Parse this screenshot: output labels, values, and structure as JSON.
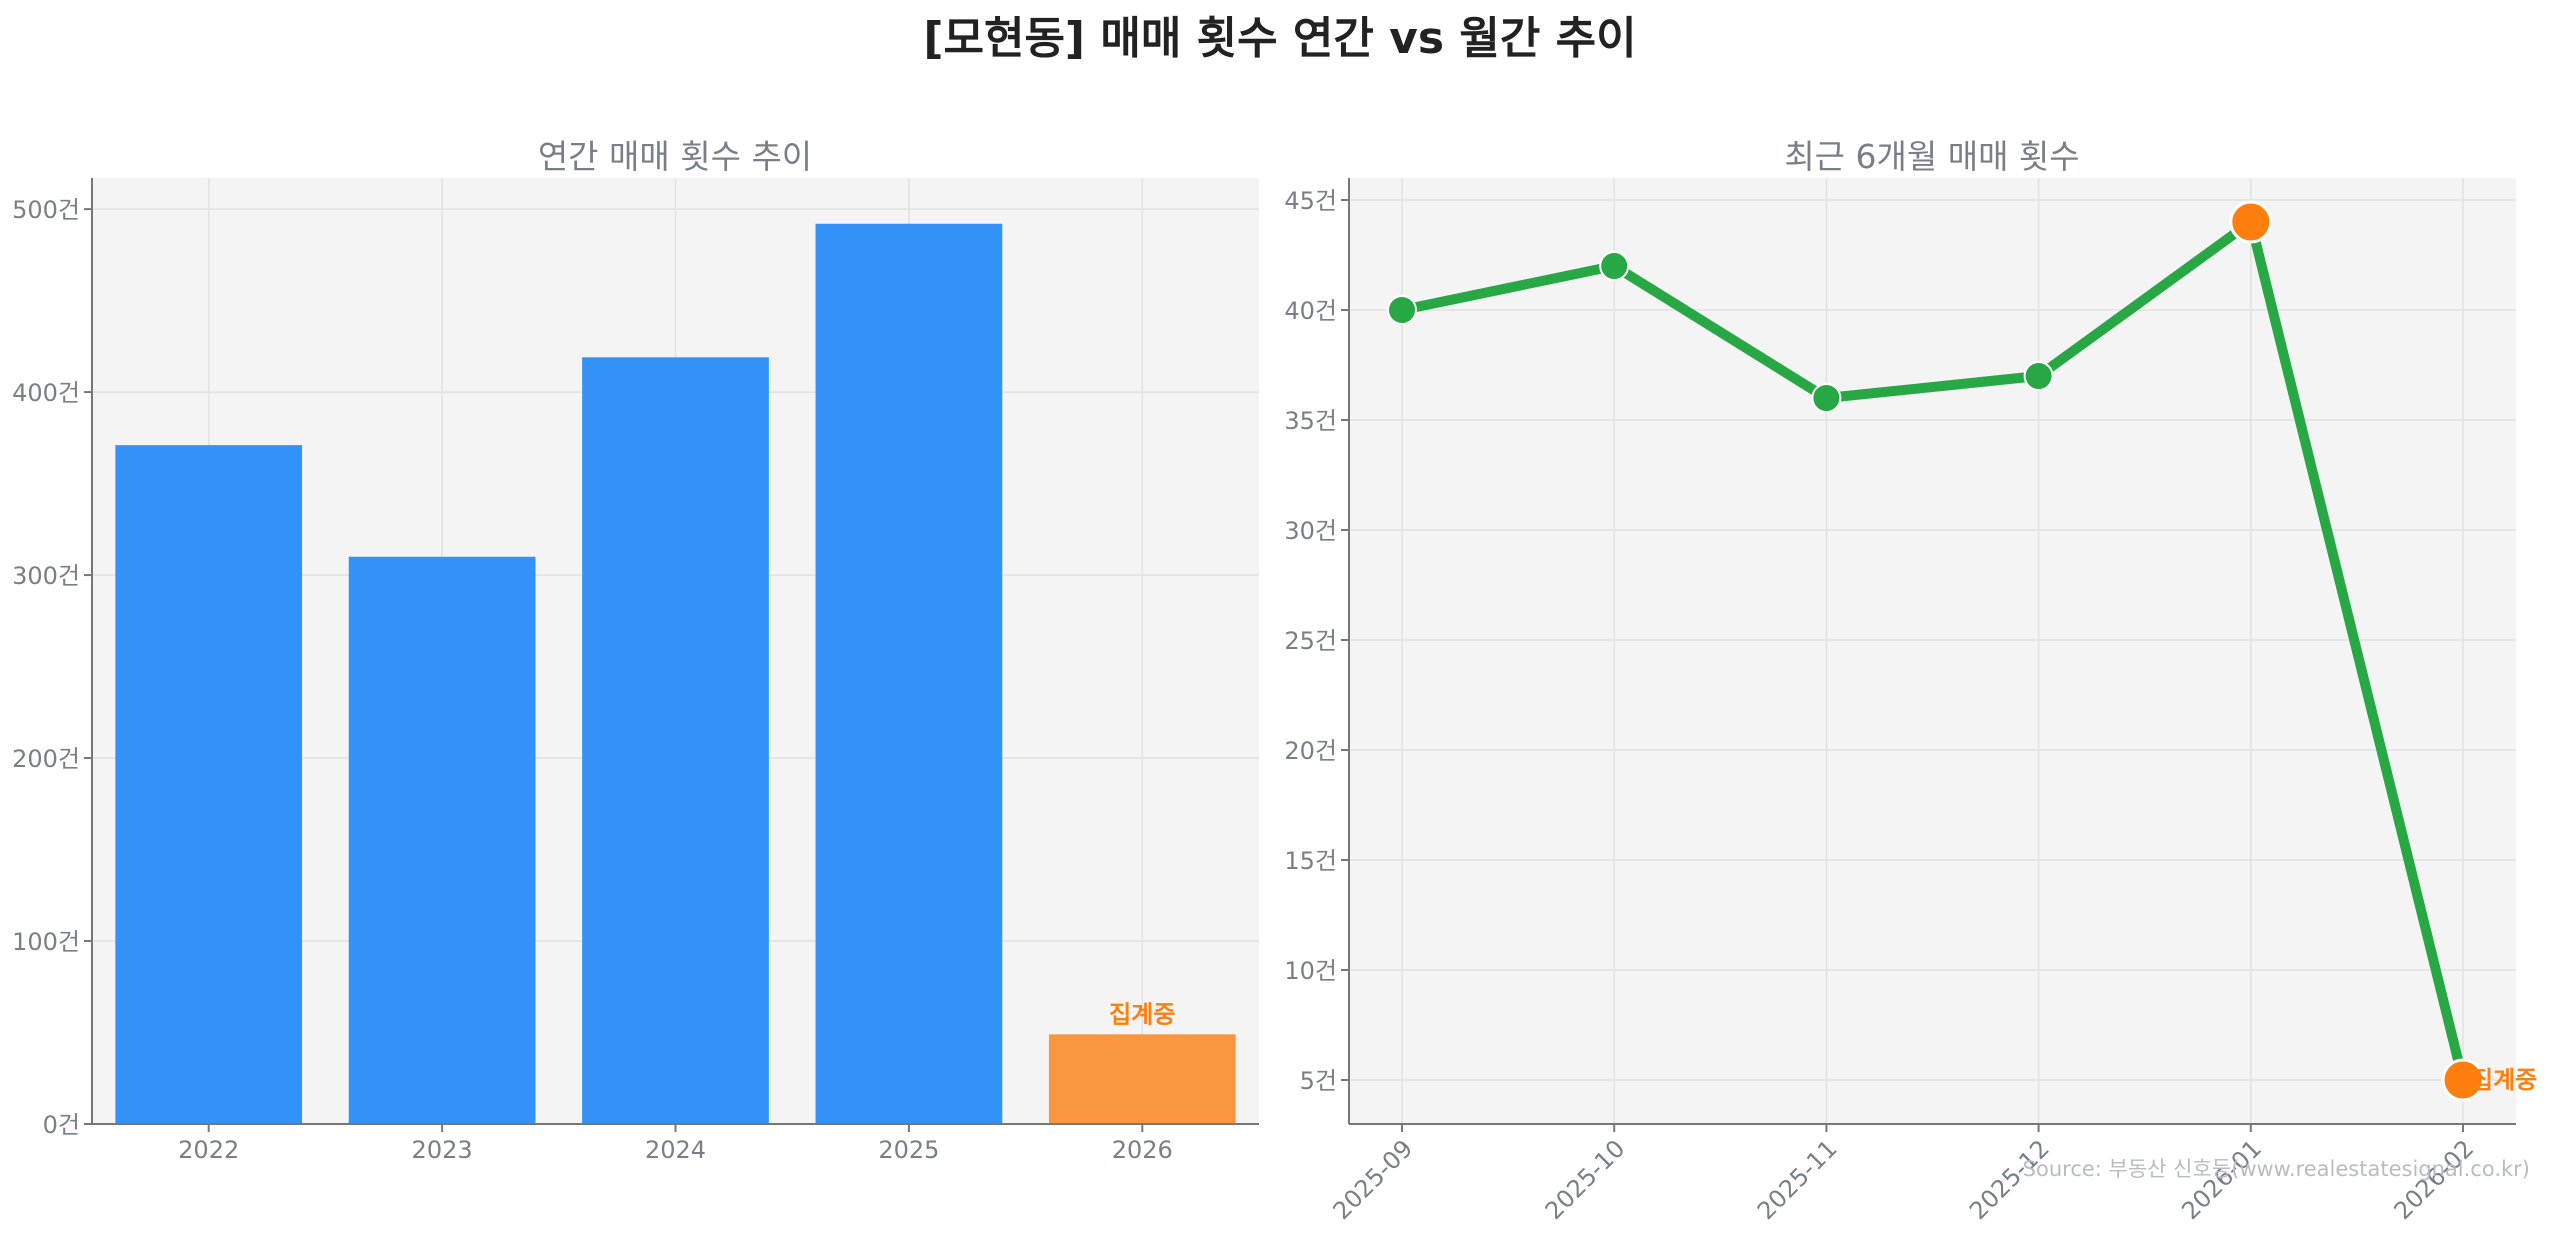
{
  "title": "[모현동] 매매 횟수 연간 vs 월간 추이",
  "source": "Source: 부동산 신호등(www.realestatesignal.co.kr)",
  "chart_data": [
    {
      "type": "bar",
      "title": "연간 매매 횟수 추이",
      "categories": [
        "2022",
        "2023",
        "2024",
        "2025",
        "2026"
      ],
      "values": [
        371,
        310,
        419,
        492,
        49
      ],
      "bar_colors": [
        "#3292f7",
        "#3292f7",
        "#3292f7",
        "#3292f7",
        "#fa963f"
      ],
      "annotation": {
        "category": "2026",
        "text": "집계중",
        "color": "#ff7f0e"
      },
      "ylim": [
        0,
        517
      ],
      "yticks": [
        0,
        100,
        200,
        300,
        400,
        500
      ],
      "ytick_labels": [
        "0건",
        "100건",
        "200건",
        "300건",
        "400건",
        "500건"
      ],
      "grid": true,
      "background": "#f4f4f4"
    },
    {
      "type": "line",
      "title": "최근 6개월 매매 횟수",
      "categories": [
        "2025-09",
        "2025-10",
        "2025-11",
        "2025-12",
        "2026-01",
        "2026-02"
      ],
      "values": [
        40,
        42,
        36,
        37,
        44,
        5
      ],
      "line_color": "#28a745",
      "highlight_points": [
        {
          "category": "2026-01",
          "color": "#ff7f0e"
        },
        {
          "category": "2026-02",
          "color": "#ff7f0e",
          "text": "집계중"
        }
      ],
      "ylim": [
        3,
        46
      ],
      "yticks": [
        5,
        10,
        15,
        20,
        25,
        30,
        35,
        40,
        45
      ],
      "ytick_labels": [
        "5건",
        "10건",
        "15건",
        "20건",
        "25건",
        "30건",
        "35건",
        "40건",
        "45건"
      ],
      "grid": true,
      "background": "#f4f4f4"
    }
  ]
}
